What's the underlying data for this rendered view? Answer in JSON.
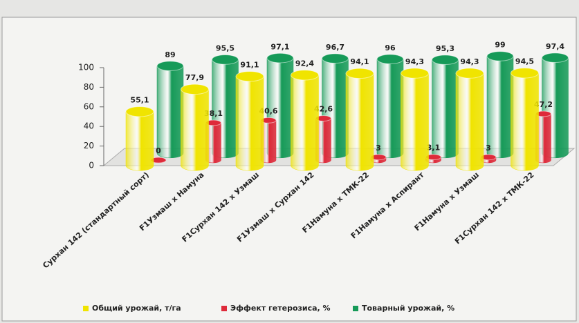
{
  "chart_data": {
    "type": "bar3d",
    "categories": [
      "Сурхан 142 (стандартный сорт)",
      "F1Узмаш х Намуна",
      "F1Сурхан 142 х Узмаш",
      "F1Узмаш х Сурхан 142",
      "F1Намуна х ТМК-22",
      "F1Намуна х Аспирант",
      "F1Намуна х Узмаш",
      "F1Сурхан 142 х ТМК-22"
    ],
    "series": [
      {
        "name": "Общий урожай, т/га",
        "color": "#f0e400",
        "values": [
          55.1,
          77.9,
          91.1,
          92.4,
          94.1,
          94.3,
          94.3,
          94.5
        ],
        "value_labels": [
          "55,1",
          "77,9",
          "91,1",
          "92,4",
          "94,1",
          "94,3",
          "94,3",
          "94,5"
        ]
      },
      {
        "name": "Эффект гетерозиса, %",
        "color": "#de2a3a",
        "values": [
          0,
          38.1,
          40.6,
          42.6,
          3,
          3.1,
          3,
          47.2
        ],
        "value_labels": [
          "0",
          "38,1",
          "40,6",
          "42,6",
          "3",
          "3,1",
          "3",
          "47,2"
        ]
      },
      {
        "name": "Товарный урожай, %",
        "color": "#169a58",
        "values": [
          89,
          95.5,
          97.1,
          96.7,
          96,
          95.3,
          99,
          97.4
        ],
        "value_labels": [
          "89",
          "95,5",
          "97,1",
          "96,7",
          "96",
          "95,3",
          "99",
          "97,4"
        ]
      }
    ],
    "ylim": [
      0,
      100
    ],
    "yticks": [
      0,
      20,
      40,
      60,
      80,
      100
    ],
    "legend": "bottom"
  }
}
